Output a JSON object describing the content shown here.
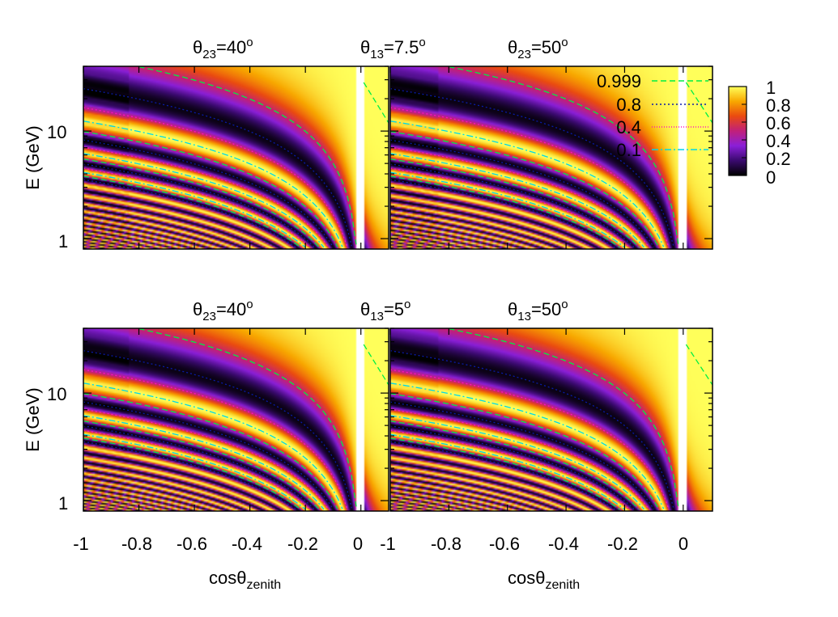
{
  "colors": {
    "palette": [
      "#000000",
      "#3a0a6e",
      "#8a1fd8",
      "#c0207a",
      "#ea4a10",
      "#f8a800",
      "#ffff5a"
    ],
    "contour_0999": "#00ee44",
    "contour_08": "#0a1aa8",
    "contour_04": "#ff10c0",
    "contour_01": "#00d8e8",
    "white_band": "#ffffff"
  },
  "titles": {
    "top_left": {
      "base": "θ",
      "sub": "23",
      "rest": "=40",
      "sup": "o"
    },
    "top_mid": {
      "base": "θ",
      "sub": "13",
      "rest": "=7.5",
      "sup": "o"
    },
    "top_right": {
      "base": "θ",
      "sub": "23",
      "rest": "=50",
      "sup": "o"
    },
    "bot_left": {
      "base": "θ",
      "sub": "23",
      "rest": "=40",
      "sup": "o"
    },
    "bot_mid": {
      "base": "θ",
      "sub": "13",
      "rest": "=5",
      "sup": "o"
    },
    "bot_right": {
      "base": "θ",
      "sub": "13",
      "rest": "=50",
      "sup": "o"
    }
  },
  "axes": {
    "ylabel": "E (GeV)",
    "xlabel": {
      "base": "cosθ",
      "sub": "zenith"
    },
    "y_ticks": [
      "10",
      "1"
    ],
    "x_ticks_left": [
      "-1",
      "-0.8",
      "-0.6",
      "-0.4",
      "-0.2",
      "0"
    ],
    "x_ticks_right": [
      "-1",
      "-0.8",
      "-0.6",
      "-0.4",
      "-0.2",
      "0"
    ]
  },
  "colorbar": {
    "ticks": [
      "1",
      "0.8",
      "0.6",
      "0.4",
      "0.2",
      "0"
    ]
  },
  "chart_data": {
    "type": "heatmap",
    "panels": 4,
    "layout": "2x2",
    "x_range": [
      -1,
      0.1
    ],
    "y_range_gev": [
      0.8,
      40
    ],
    "y_scale": "log",
    "color_range": [
      0,
      1
    ],
    "x_ticks": [
      -1,
      -0.8,
      -0.6,
      -0.4,
      -0.2,
      0
    ],
    "y_ticks": [
      1,
      10
    ],
    "contour_levels": [
      {
        "level": "0.999",
        "style": "dashed",
        "color": "#00ee44"
      },
      {
        "level": "0.8",
        "style": "dotted",
        "color": "#0a1aa8"
      },
      {
        "level": "0.4",
        "style": "dotted",
        "color": "#ff10c0"
      },
      {
        "level": "0.1",
        "style": "dash-dot",
        "color": "#00d8e8"
      }
    ],
    "legend_position": "top-right"
  }
}
